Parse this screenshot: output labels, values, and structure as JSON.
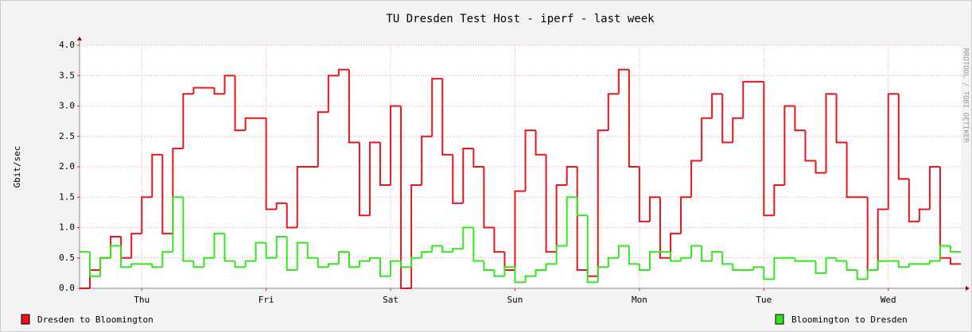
{
  "chart_data": {
    "type": "step",
    "title": "TU Dresden Test Host - iperf - last week",
    "y_label": "Gbit/sec",
    "side_text": "RRDTOOL / TOBI OETIKER",
    "x": [
      0,
      2,
      4,
      6,
      8,
      10,
      12,
      14,
      16,
      18,
      20,
      22,
      24,
      26,
      28,
      30,
      32,
      34,
      36,
      38,
      40,
      42,
      44,
      46,
      48,
      50,
      52,
      54,
      56,
      58,
      60,
      62,
      64,
      66,
      68,
      70,
      72,
      74,
      76,
      78,
      80,
      82,
      84,
      86,
      88,
      90,
      92,
      94,
      96,
      98,
      100,
      102,
      104,
      106,
      108,
      110,
      112,
      114,
      116,
      118,
      120,
      122,
      124,
      126,
      128,
      130,
      132,
      134,
      136,
      138,
      140,
      142,
      144,
      146,
      148,
      150,
      152,
      154,
      156,
      158,
      160,
      162,
      164,
      166,
      168
    ],
    "xlim": [
      0,
      170
    ],
    "xticks": [
      {
        "value": 12,
        "label": "Thu"
      },
      {
        "value": 36,
        "label": "Fri"
      },
      {
        "value": 60,
        "label": "Sat"
      },
      {
        "value": 84,
        "label": "Sun"
      },
      {
        "value": 108,
        "label": "Mon"
      },
      {
        "value": 132,
        "label": "Tue"
      },
      {
        "value": 156,
        "label": "Wed"
      }
    ],
    "ylim": [
      0,
      4
    ],
    "yticks": [
      {
        "value": 0,
        "label": "0.0"
      },
      {
        "value": 0.5,
        "label": "0.5"
      },
      {
        "value": 1,
        "label": "1.0"
      },
      {
        "value": 1.5,
        "label": "1.5"
      },
      {
        "value": 2,
        "label": "2.0"
      },
      {
        "value": 2.5,
        "label": "2.5"
      },
      {
        "value": 3,
        "label": "3.0"
      },
      {
        "value": 3.5,
        "label": "3.5"
      },
      {
        "value": 4,
        "label": "4.0"
      }
    ],
    "grid": true,
    "series": [
      {
        "name": "Dresden to Bloomington",
        "color": "#e8141c",
        "values": [
          0,
          0.3,
          0.5,
          0.85,
          0.5,
          0.9,
          1.5,
          2.2,
          0.9,
          2.3,
          3.2,
          3.3,
          3.3,
          3.2,
          3.5,
          2.6,
          2.8,
          2.8,
          1.3,
          1.4,
          1.0,
          2.0,
          2.0,
          2.9,
          3.5,
          3.6,
          2.4,
          1.2,
          2.4,
          1.7,
          3.0,
          0,
          1.7,
          2.5,
          3.45,
          2.2,
          1.4,
          2.3,
          2.0,
          1.0,
          0.6,
          0.3,
          1.6,
          2.6,
          2.2,
          0.6,
          1.7,
          2.0,
          0.3,
          0.2,
          2.6,
          3.2,
          3.6,
          2.0,
          1.1,
          1.5,
          0.5,
          0.9,
          1.5,
          2.1,
          2.8,
          3.2,
          2.4,
          2.8,
          3.4,
          3.4,
          1.2,
          1.7,
          3.0,
          2.6,
          2.1,
          1.9,
          3.2,
          2.4,
          1.5,
          1.5,
          0.3,
          1.3,
          3.2,
          1.8,
          1.1,
          1.3,
          2.0,
          0.5,
          0.4
        ]
      },
      {
        "name": "Bloomington to Dresden",
        "color": "#32e61e",
        "values": [
          0.6,
          0.2,
          0.5,
          0.7,
          0.35,
          0.4,
          0.4,
          0.35,
          0.6,
          1.5,
          0.45,
          0.35,
          0.5,
          0.9,
          0.45,
          0.35,
          0.45,
          0.75,
          0.5,
          0.85,
          0.3,
          0.75,
          0.5,
          0.35,
          0.4,
          0.6,
          0.35,
          0.45,
          0.5,
          0.2,
          0.45,
          0.35,
          0.5,
          0.6,
          0.7,
          0.6,
          0.65,
          1.0,
          0.45,
          0.3,
          0.2,
          0.35,
          0.1,
          0.2,
          0.3,
          0.4,
          0.7,
          1.5,
          1.2,
          0.1,
          0.35,
          0.5,
          0.7,
          0.4,
          0.3,
          0.6,
          0.6,
          0.45,
          0.5,
          0.7,
          0.45,
          0.6,
          0.4,
          0.3,
          0.3,
          0.35,
          0.15,
          0.5,
          0.5,
          0.45,
          0.45,
          0.25,
          0.5,
          0.45,
          0.3,
          0.15,
          0.3,
          0.45,
          0.45,
          0.35,
          0.4,
          0.4,
          0.45,
          0.7,
          0.6
        ]
      }
    ]
  }
}
